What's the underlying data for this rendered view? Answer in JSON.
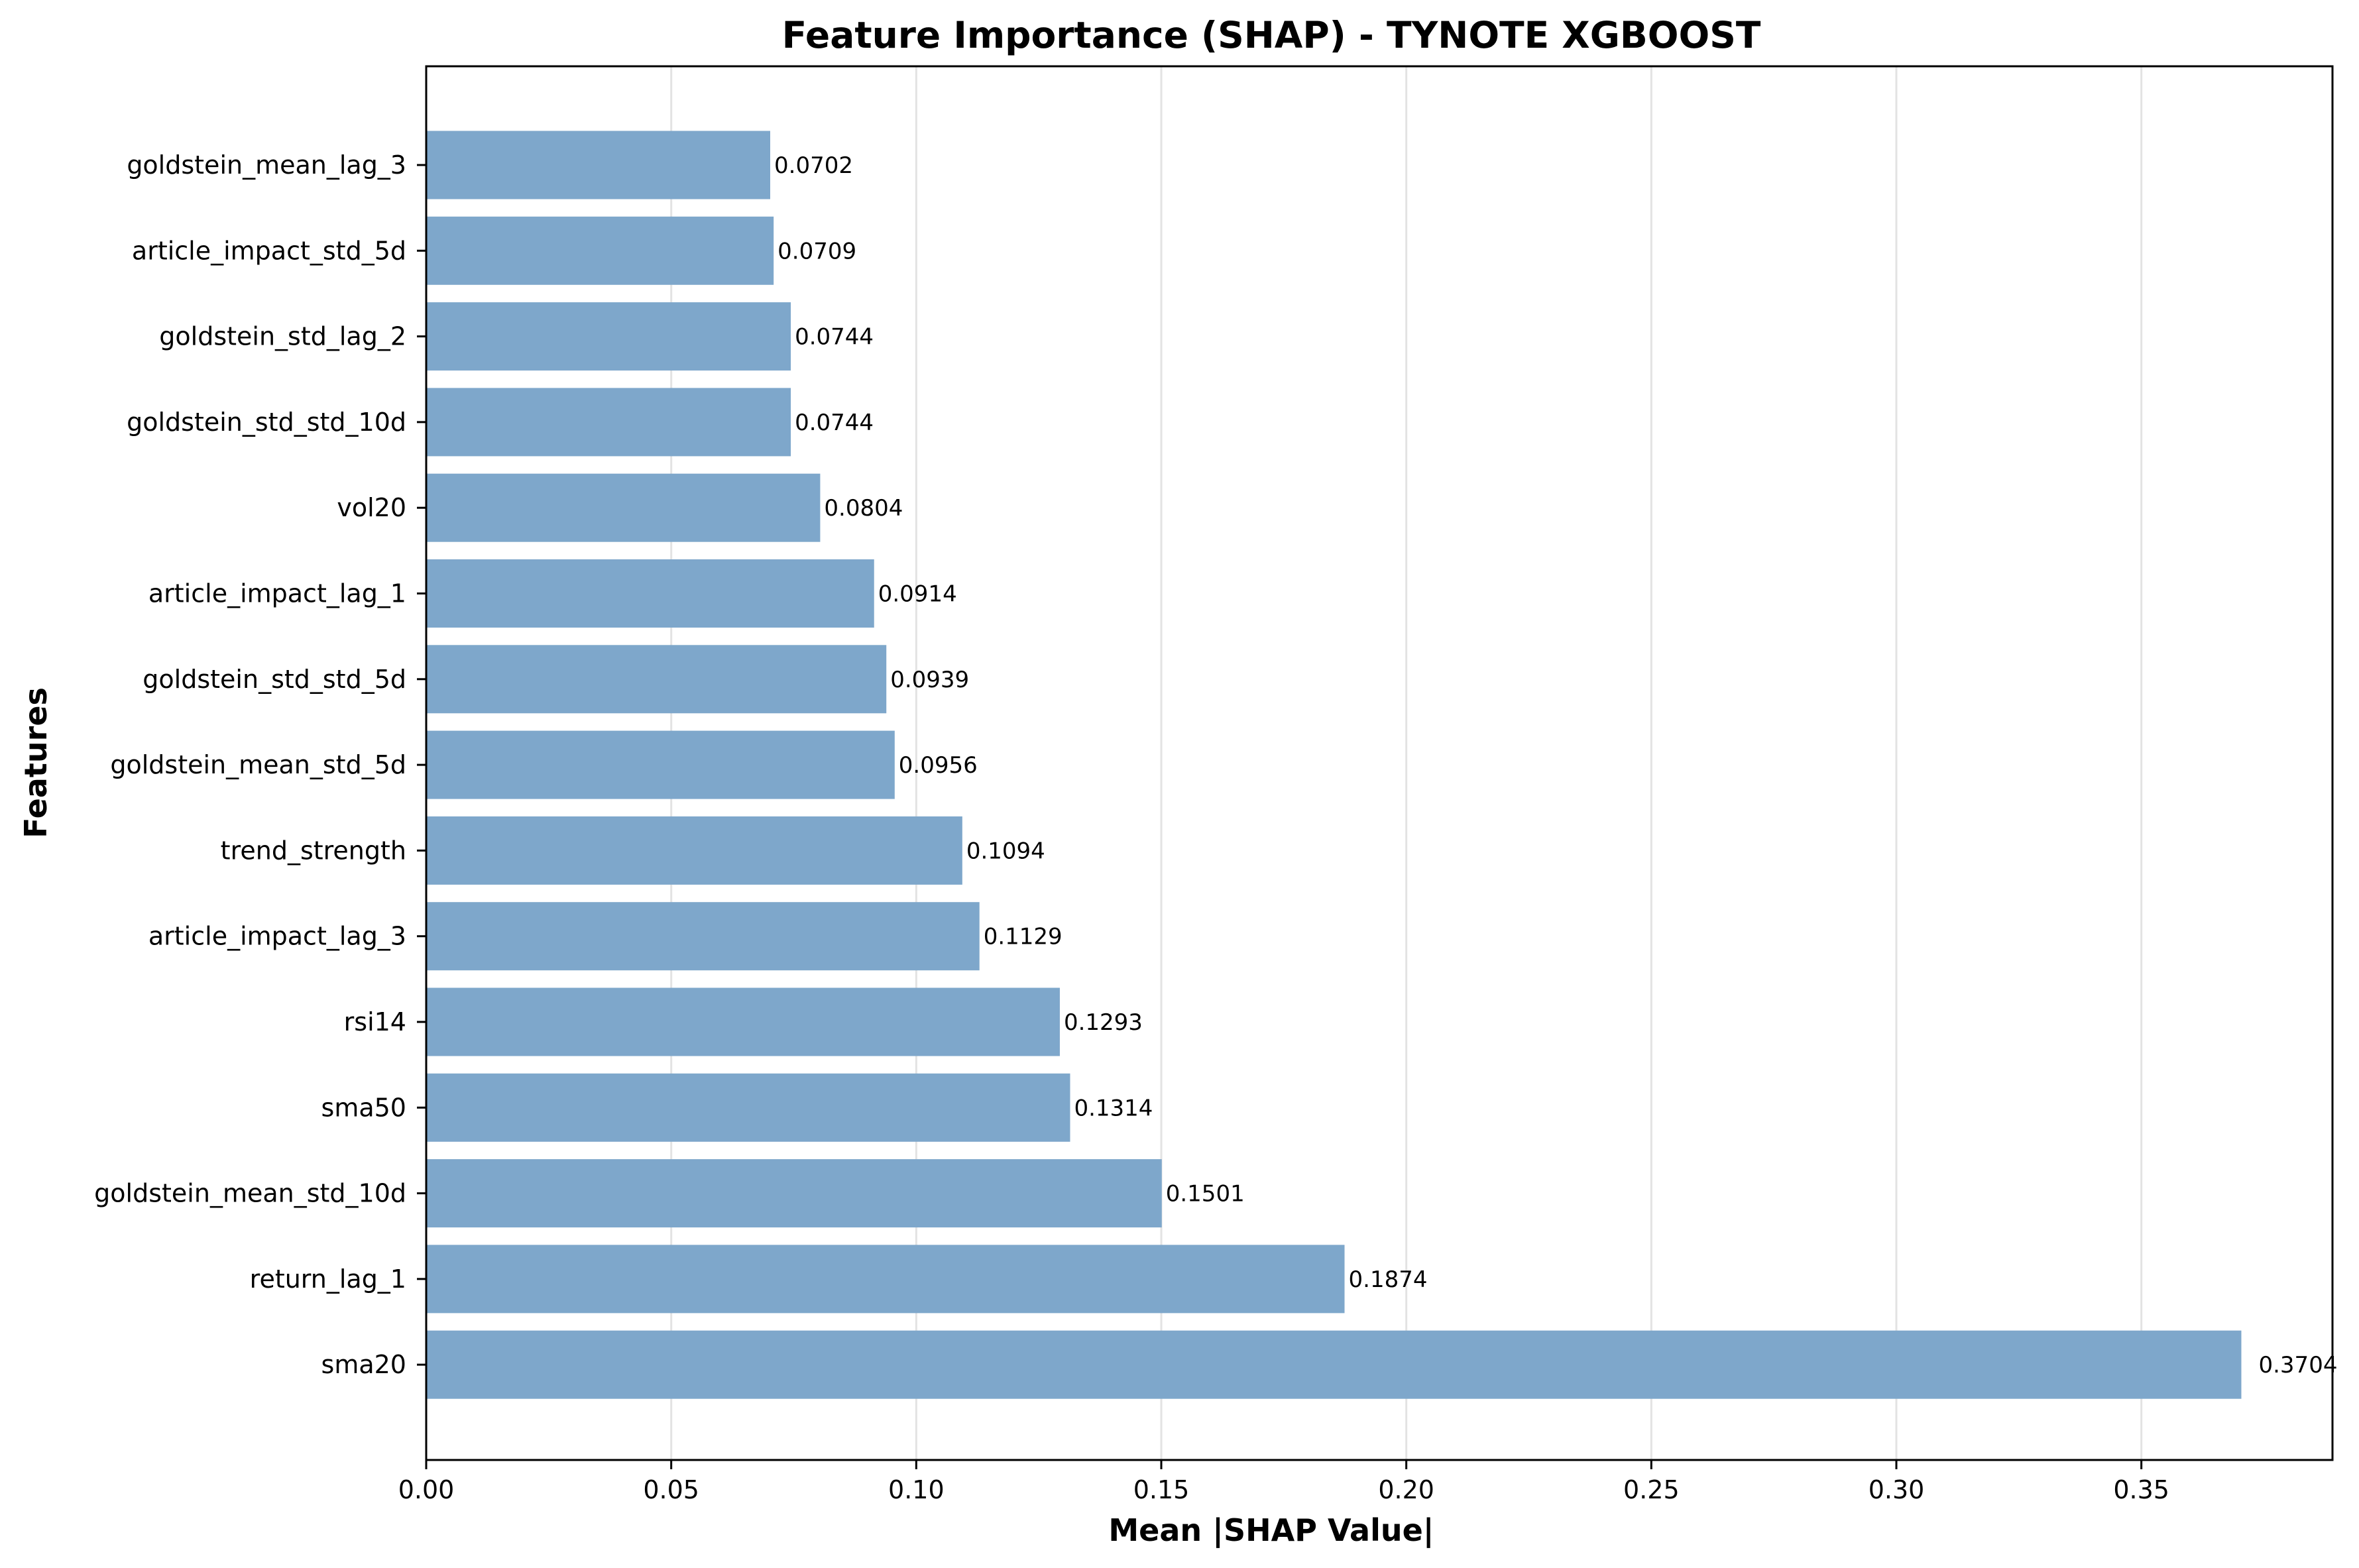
{
  "chart_data": {
    "type": "bar",
    "orientation": "horizontal",
    "title": "Feature Importance (SHAP) - TYNOTE XGBOOST",
    "xlabel": "Mean |SHAP Value|",
    "ylabel": "Features",
    "xlim": [
      0.0,
      0.389
    ],
    "xticks": [
      0.0,
      0.05,
      0.1,
      0.15,
      0.2,
      0.25,
      0.3,
      0.35
    ],
    "xtick_labels": [
      "0.00",
      "0.05",
      "0.10",
      "0.15",
      "0.20",
      "0.25",
      "0.30",
      "0.35"
    ],
    "grid": "x",
    "bar_color": "#7ea7cb",
    "categories": [
      "goldstein_mean_lag_3",
      "article_impact_std_5d",
      "goldstein_std_lag_2",
      "goldstein_std_std_10d",
      "vol20",
      "article_impact_lag_1",
      "goldstein_std_std_5d",
      "goldstein_mean_std_5d",
      "trend_strength",
      "article_impact_lag_3",
      "rsi14",
      "sma50",
      "goldstein_mean_std_10d",
      "return_lag_1",
      "sma20"
    ],
    "values": [
      0.0702,
      0.0709,
      0.0744,
      0.0744,
      0.0804,
      0.0914,
      0.0939,
      0.0956,
      0.1094,
      0.1129,
      0.1293,
      0.1314,
      0.1501,
      0.1874,
      0.3704
    ],
    "data_labels": [
      "0.0702",
      "0.0709",
      "0.0744",
      "0.0744",
      "0.0804",
      "0.0914",
      "0.0939",
      "0.0956",
      "0.1094",
      "0.1129",
      "0.1293",
      "0.1314",
      "0.1501",
      "0.1874",
      "0.3704"
    ]
  }
}
